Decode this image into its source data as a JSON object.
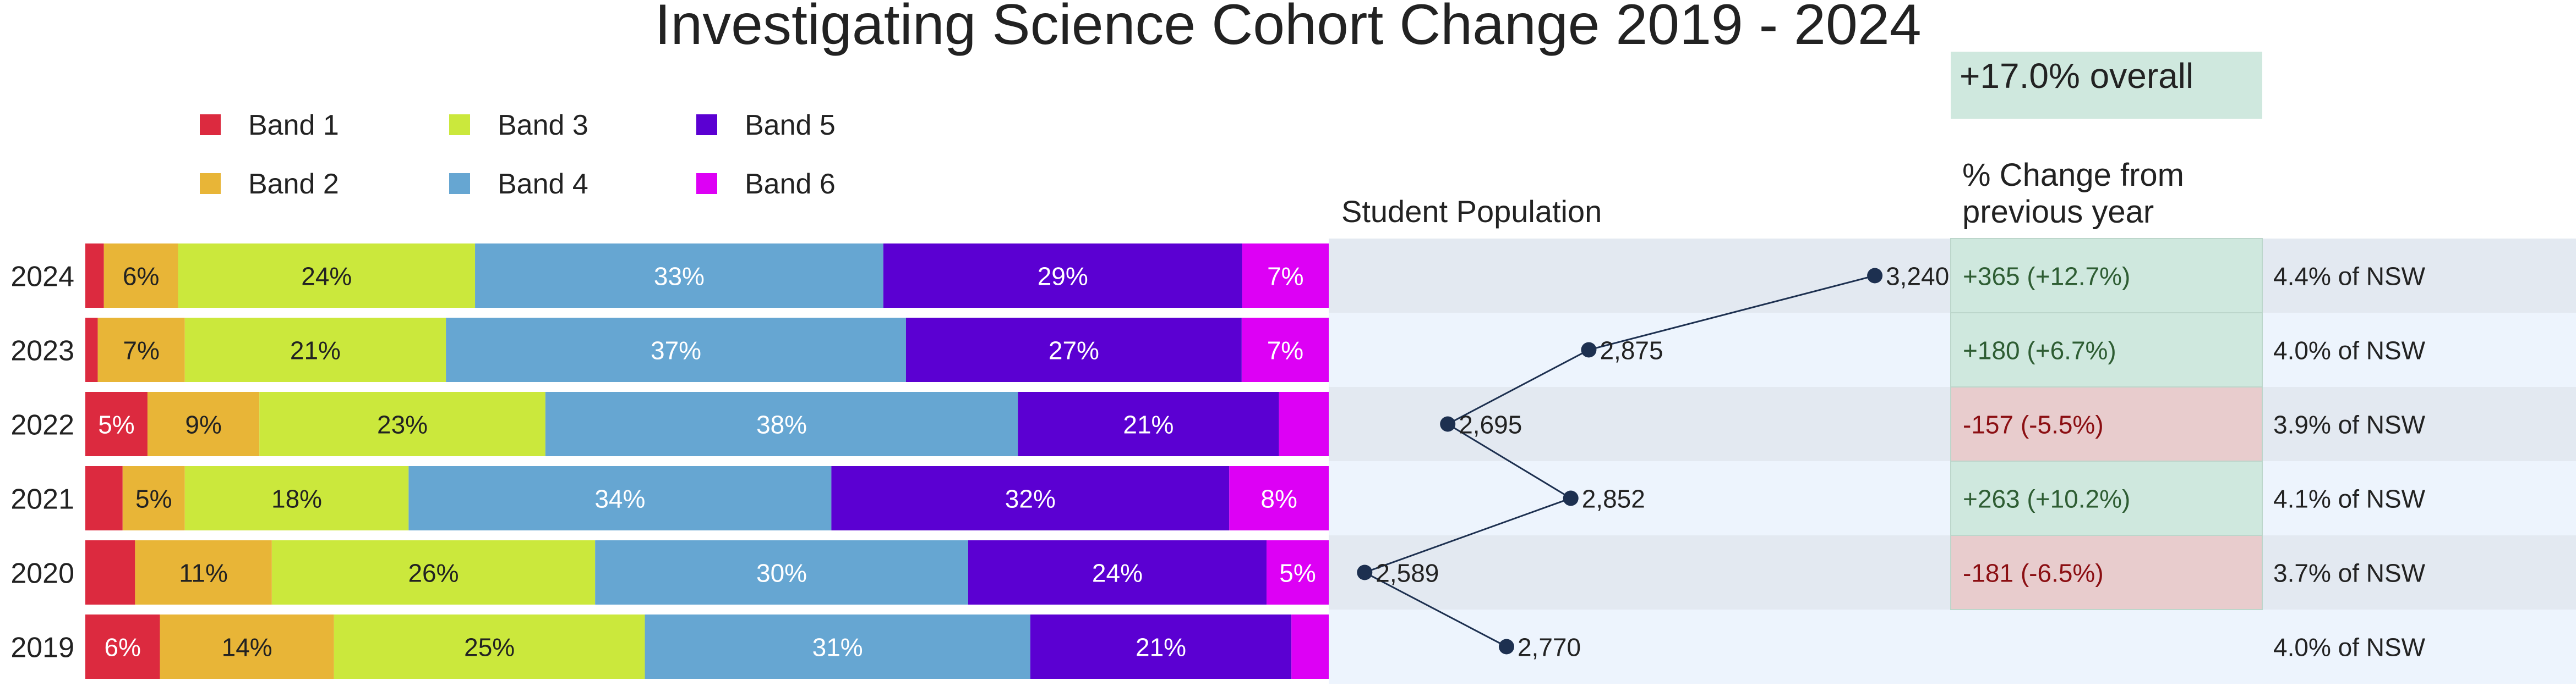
{
  "colors": {
    "band1": "#dc2a3f",
    "band2": "#e8b537",
    "band3": "#cbe83c",
    "band4": "#66a6d2",
    "band5": "#5b00d2",
    "band6": "#dd00f5",
    "row_dark": "#e3e9f1",
    "row_light": "#edf4fd",
    "positive_bg": "#cfe8de",
    "negative_bg": "#e8cccd",
    "positive_text": "#2e5d33",
    "negative_text": "#8b0e12",
    "point": "#1d3050"
  },
  "chart_data": {
    "type": "stacked-bar-with-population-line",
    "title": "Investigating Science Cohort Change 2019 - 2024",
    "legend": [
      {
        "name": "Band 1",
        "color_key": "band1"
      },
      {
        "name": "Band 2",
        "color_key": "band2"
      },
      {
        "name": "Band 3",
        "color_key": "band3"
      },
      {
        "name": "Band 4",
        "color_key": "band4"
      },
      {
        "name": "Band 5",
        "color_key": "band5"
      },
      {
        "name": "Band 6",
        "color_key": "band6"
      }
    ],
    "xlim_percent": [
      0,
      100
    ],
    "rows": [
      {
        "year": "2024",
        "bands": [
          1.5,
          6,
          24,
          33,
          29,
          7
        ],
        "labels": [
          "",
          "6%",
          "24%",
          "33%",
          "29%",
          "7%"
        ],
        "population": 3240,
        "population_label": "3,240",
        "change": "+365  (+12.7%)",
        "change_sign": "positive",
        "share": "4.4% of NSW"
      },
      {
        "year": "2023",
        "bands": [
          1,
          7,
          21,
          37,
          27,
          7
        ],
        "labels": [
          "",
          "7%",
          "21%",
          "37%",
          "27%",
          "7%"
        ],
        "population": 2875,
        "population_label": "2,875",
        "change": "+180  (+6.7%)",
        "change_sign": "positive",
        "share": "4.0% of NSW"
      },
      {
        "year": "2022",
        "bands": [
          5,
          9,
          23,
          38,
          21,
          4
        ],
        "labels": [
          "5%",
          "9%",
          "23%",
          "38%",
          "21%",
          ""
        ],
        "population": 2695,
        "population_label": "2,695",
        "change": "-157  (-5.5%)",
        "change_sign": "negative",
        "share": "3.9% of NSW"
      },
      {
        "year": "2021",
        "bands": [
          3,
          5,
          18,
          34,
          32,
          8
        ],
        "labels": [
          "",
          "5%",
          "18%",
          "34%",
          "32%",
          "8%"
        ],
        "population": 2852,
        "population_label": "2,852",
        "change": "+263  (+10.2%)",
        "change_sign": "positive",
        "share": "4.1% of NSW"
      },
      {
        "year": "2020",
        "bands": [
          4,
          11,
          26,
          30,
          24,
          5
        ],
        "labels": [
          "",
          "11%",
          "26%",
          "30%",
          "24%",
          "5%"
        ],
        "population": 2589,
        "population_label": "2,589",
        "change": "-181  (-6.5%)",
        "change_sign": "negative",
        "share": "3.7% of NSW"
      },
      {
        "year": "2019",
        "bands": [
          6,
          14,
          25,
          31,
          21,
          3
        ],
        "labels": [
          "6%",
          "14%",
          "25%",
          "31%",
          "21%",
          ""
        ],
        "population": 2770,
        "population_label": "2,770",
        "change": "",
        "change_sign": "none",
        "share": "4.0% of NSW"
      }
    ],
    "population_title": "Student Population",
    "population_range": [
      2560,
      3320
    ],
    "change_title_line1": "% Change from",
    "change_title_line2": "previous year",
    "overall_change": "+17.0% overall"
  }
}
